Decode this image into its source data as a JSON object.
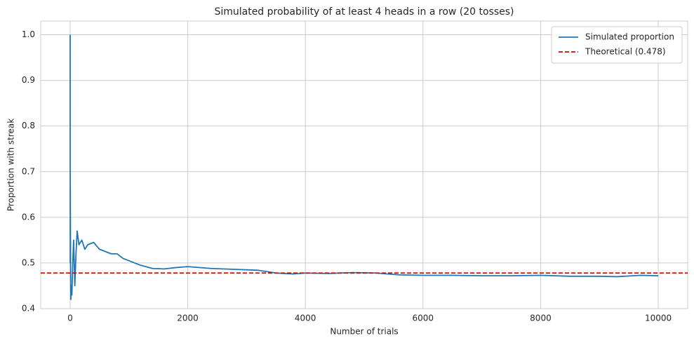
{
  "chart_data": {
    "type": "line",
    "title": "Simulated probability of at least 4 heads in a row (20 tosses)",
    "x_label": "Number of trials",
    "y_label": "Proportion with streak",
    "x": [
      1,
      2,
      3,
      5,
      8,
      12,
      20,
      30,
      45,
      60,
      80,
      100,
      120,
      150,
      200,
      250,
      300,
      400,
      500,
      600,
      700,
      800,
      900,
      1000,
      1200,
      1400,
      1600,
      1800,
      2000,
      2400,
      2800,
      3200,
      3500,
      3800,
      4000,
      4400,
      4800,
      5200,
      5600,
      6000,
      6500,
      7000,
      7500,
      8000,
      8500,
      9000,
      9300,
      9700,
      10000
    ],
    "series": [
      {
        "name": "Simulated proportion",
        "color": "#1f77b4",
        "values": [
          1.0,
          0.5,
          0.667,
          0.6,
          0.5,
          0.42,
          0.45,
          0.43,
          0.5,
          0.55,
          0.45,
          0.52,
          0.57,
          0.54,
          0.55,
          0.53,
          0.54,
          0.545,
          0.53,
          0.525,
          0.52,
          0.52,
          0.51,
          0.505,
          0.495,
          0.488,
          0.487,
          0.49,
          0.492,
          0.488,
          0.486,
          0.484,
          0.478,
          0.476,
          0.478,
          0.477,
          0.479,
          0.478,
          0.474,
          0.473,
          0.473,
          0.472,
          0.472,
          0.473,
          0.471,
          0.471,
          0.47,
          0.473,
          0.472
        ]
      }
    ],
    "hlines": [
      {
        "name": "Theoretical (0.478)",
        "value": 0.478,
        "color": "#e00000"
      }
    ],
    "xlim": [
      -500,
      10500
    ],
    "xticks": [
      0,
      2000,
      4000,
      6000,
      8000,
      10000
    ],
    "ylim": [
      0.4,
      1.03
    ],
    "yticks": [
      {
        "value": 0.4,
        "label": "0.4"
      },
      {
        "value": 0.5,
        "label": "0.5"
      },
      0.6,
      0.7,
      0.8,
      0.9,
      {
        "value": 1.0,
        "label": "1.0"
      }
    ],
    "grid": true,
    "legend": "upper right"
  }
}
